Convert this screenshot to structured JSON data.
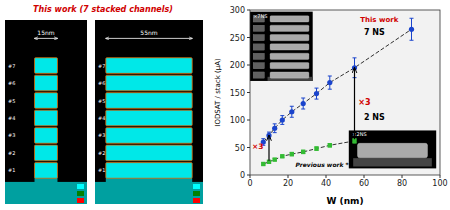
{
  "chart_data": {
    "type": "scatter",
    "title": "This work (7 stacked channels)",
    "x_label": "W (nm)",
    "y_label": "IODSAT / stack (μA)",
    "xlim": [
      0,
      100
    ],
    "ylim": [
      0,
      300
    ],
    "xticks": [
      0,
      20,
      40,
      60,
      80,
      100
    ],
    "yticks": [
      0,
      50,
      100,
      150,
      200,
      250,
      300
    ],
    "grid": false,
    "series": [
      {
        "color": "#1a44cc",
        "marker": "circle",
        "line_style": "dashed",
        "x": [
          7,
          10,
          13,
          17,
          22,
          28,
          35,
          42,
          55,
          85
        ],
        "values": [
          60,
          72,
          85,
          100,
          115,
          130,
          148,
          168,
          195,
          265
        ],
        "errors": [
          6,
          6,
          8,
          8,
          10,
          10,
          10,
          12,
          18,
          20
        ]
      },
      {
        "color": "#33bb33",
        "marker": "square",
        "line_style": "dashed",
        "x": [
          7,
          10,
          13,
          17,
          22,
          28,
          35,
          42,
          55
        ],
        "values": [
          20,
          24,
          28,
          34,
          38,
          42,
          48,
          54,
          62
        ],
        "errors": [
          2,
          2,
          2,
          2,
          3,
          3,
          3,
          3,
          4
        ]
      }
    ],
    "annotations": [
      "This work",
      "7 NS",
      "×3",
      "2 NS",
      "×3",
      "Previous work *",
      "×7NS",
      "×2NS",
      "15nm",
      "55nm",
      "#1",
      "#2",
      "#3",
      "#4",
      "#5",
      "#6",
      "#7"
    ]
  }
}
